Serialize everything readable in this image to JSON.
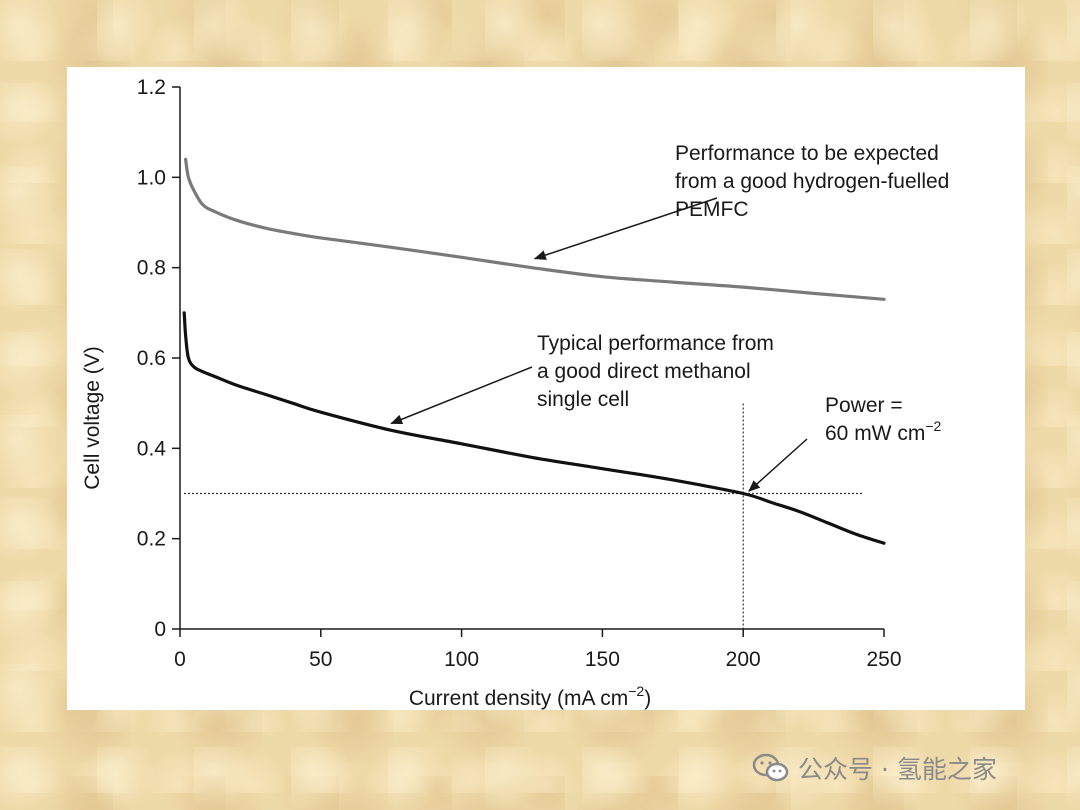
{
  "chart_data": {
    "type": "line",
    "xlabel": "Current density (mA cm",
    "xlabel_sup": "−2",
    "xlabel_end": ")",
    "ylabel": "Cell voltage (V)",
    "xlim": [
      0,
      250
    ],
    "ylim": [
      0,
      1.2
    ],
    "xticks": [
      0,
      50,
      100,
      150,
      200,
      250
    ],
    "xtick_labels": [
      "0",
      "50",
      "100",
      "150",
      "200",
      "250"
    ],
    "yticks": [
      0,
      0.2,
      0.4,
      0.6,
      0.8,
      1.0,
      1.2
    ],
    "ytick_labels": [
      "0",
      "0.2",
      "0.4",
      "0.6",
      "0.8",
      "1.0",
      "1.2"
    ],
    "grid": false,
    "series": [
      {
        "name": "hydrogen PEMFC",
        "color": "#7a7a7a",
        "x": [
          2,
          3,
          5,
          8,
          12,
          20,
          30,
          40,
          50,
          75,
          100,
          125,
          150,
          175,
          200,
          225,
          250
        ],
        "y": [
          1.04,
          1.0,
          0.97,
          0.94,
          0.925,
          0.905,
          0.888,
          0.876,
          0.866,
          0.845,
          0.823,
          0.8,
          0.78,
          0.768,
          0.757,
          0.743,
          0.73
        ]
      },
      {
        "name": "direct methanol single cell",
        "color": "#111111",
        "x": [
          1.5,
          2,
          3,
          5,
          8,
          12,
          20,
          30,
          40,
          50,
          75,
          100,
          125,
          150,
          175,
          200,
          210,
          220,
          230,
          240,
          250
        ],
        "y": [
          0.7,
          0.65,
          0.6,
          0.58,
          0.57,
          0.56,
          0.54,
          0.52,
          0.5,
          0.48,
          0.44,
          0.41,
          0.38,
          0.355,
          0.33,
          0.3,
          0.28,
          0.26,
          0.235,
          0.21,
          0.19
        ]
      }
    ],
    "reference_lines": {
      "x": 200,
      "y": 0.3
    },
    "annotations": [
      {
        "lines": [
          "Performance to be expected",
          "from a good hydrogen-fuelled",
          "PEMFC"
        ],
        "arrow_target": {
          "x": 126,
          "y": 0.82
        }
      },
      {
        "lines": [
          "Typical performance from",
          "a good direct methanol",
          "single cell"
        ],
        "arrow_target": {
          "x": 75,
          "y": 0.455
        }
      },
      {
        "lines": [
          "Power =",
          "60 mW cm"
        ],
        "sup": "−2",
        "arrow_target": {
          "x": 202,
          "y": 0.305
        }
      }
    ]
  },
  "watermark": {
    "text": "公众号 · 氢能之家",
    "icon": "wechat-icon"
  }
}
